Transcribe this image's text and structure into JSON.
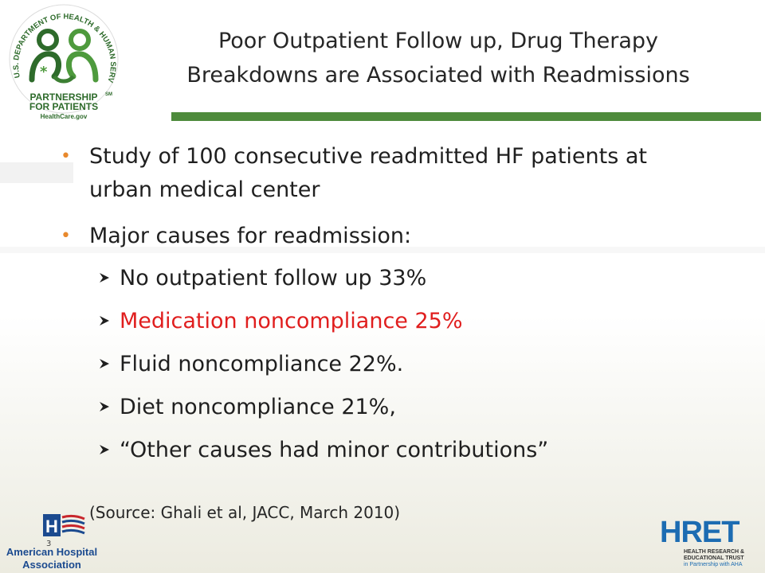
{
  "header": {
    "title_line1": "Poor Outpatient Follow up, Drug Therapy",
    "title_line2": "Breakdowns are Associated with Readmissions"
  },
  "hhs_logo": {
    "arc_text": "U.S. DEPARTMENT OF HEALTH & HUMAN SERVICES",
    "line1": "PARTNERSHIP",
    "line2": "FOR PATIENTS",
    "site": "HealthCare.gov",
    "mark": "SM"
  },
  "bullets": [
    {
      "line1": "Study of 100 consecutive readmitted HF patients at",
      "line2": "urban medical center"
    },
    {
      "line1": "Major causes for readmission:"
    }
  ],
  "causes": [
    {
      "text": "No outpatient follow up 33%",
      "highlight": false
    },
    {
      "text": "Medication noncompliance 25%",
      "highlight": true
    },
    {
      "text": "Fluid noncompliance 22%.",
      "highlight": false
    },
    {
      "text": "Diet noncompliance 21%,",
      "highlight": false
    },
    {
      "text": "“Other causes had minor contributions”",
      "highlight": false
    }
  ],
  "source": "(Source: Ghali et al, JACC, March 2010)",
  "footer": {
    "page_number": "3",
    "aha_line1": "American Hospital",
    "aha_line2": "Association",
    "hret_name": "HRET",
    "hret_line1": "HEALTH RESEARCH &",
    "hret_line2": "EDUCATIONAL TRUST",
    "hret_line3": "in Partnership with AHA"
  },
  "colors": {
    "accent_green": "#4e8b3c",
    "bullet_orange": "#e8892d",
    "highlight_red": "#e01e1e",
    "aha_blue": "#1b4a8f",
    "hret_blue": "#1c6cb2"
  },
  "icons": [
    "hhs-partnership-logo",
    "aha-flag-logo",
    "hret-logo",
    "arrow-bullet-icon"
  ]
}
